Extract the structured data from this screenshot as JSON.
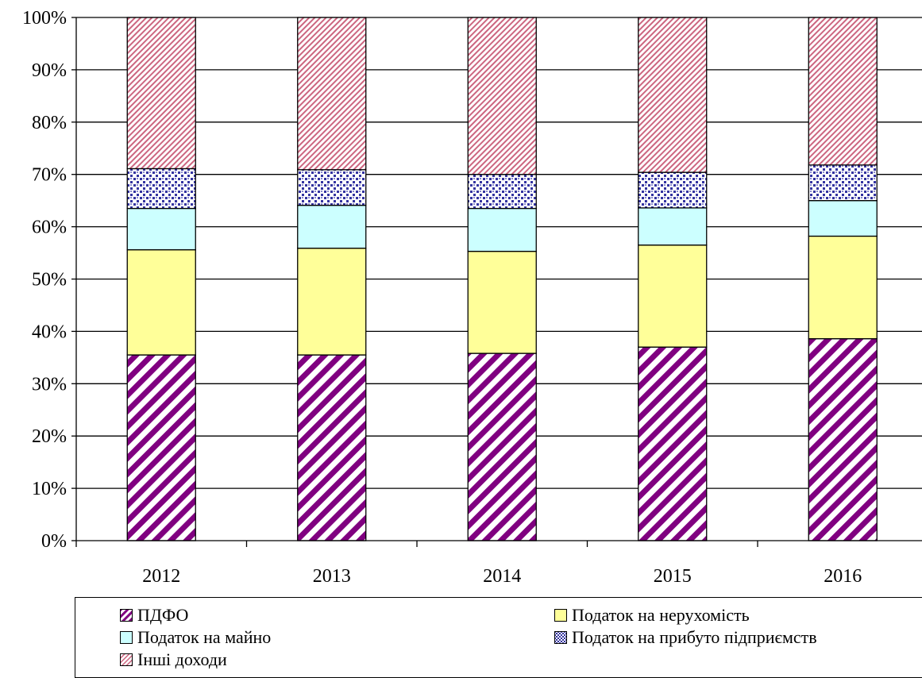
{
  "chart_data": {
    "type": "bar",
    "stacked": true,
    "normalized": true,
    "categories": [
      "2012",
      "2013",
      "2014",
      "2015",
      "2016"
    ],
    "series": [
      {
        "name": "ПДФО",
        "values": [
          35.5,
          35.5,
          35.8,
          37.0,
          38.6
        ],
        "color": "#800080",
        "pattern": "diagonal-stripes"
      },
      {
        "name": "Податок на нерухомість",
        "values": [
          20.1,
          20.4,
          19.5,
          19.5,
          19.6
        ],
        "color": "#ffff99",
        "pattern": "solid"
      },
      {
        "name": "Податок на майно",
        "values": [
          7.9,
          8.2,
          8.2,
          7.1,
          6.8
        ],
        "color": "#ccffff",
        "pattern": "solid"
      },
      {
        "name": "Податок на прибуто підприємств",
        "values": [
          7.6,
          6.8,
          6.5,
          6.8,
          6.8
        ],
        "color": "#3333a0",
        "pattern": "dots"
      },
      {
        "name": "Інші доходи",
        "values": [
          28.9,
          29.1,
          30.0,
          29.6,
          28.2
        ],
        "color": "#cc6680",
        "pattern": "fine-diagonal"
      }
    ],
    "yticks": [
      "0%",
      "10%",
      "20%",
      "30%",
      "40%",
      "50%",
      "60%",
      "70%",
      "80%",
      "90%",
      "100%"
    ],
    "ylim": [
      0,
      100
    ],
    "grid": true,
    "legend_position": "bottom"
  }
}
